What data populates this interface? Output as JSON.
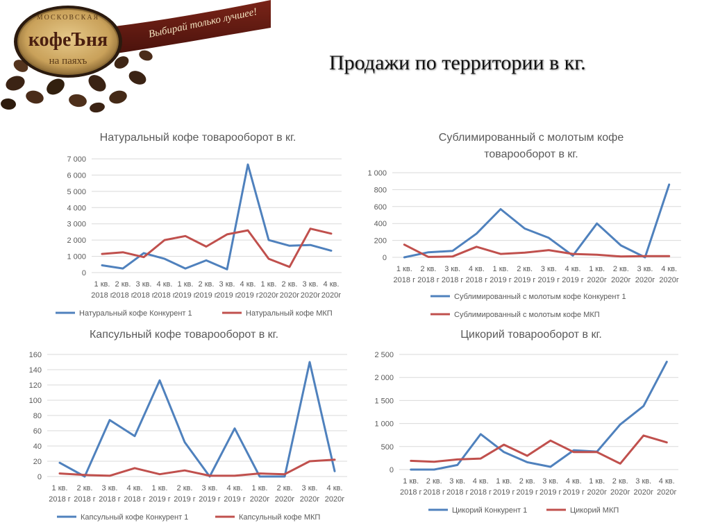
{
  "page": {
    "title": "Продажи по территории в кг."
  },
  "logo": {
    "arc_text": "МОСКОВСКАЯ",
    "brand": "кофеЪня",
    "sub": "на паяхъ",
    "ribbon": "Выбирай только лучшее!"
  },
  "colors": {
    "competitor": "#4f81bd",
    "mkp": "#c0504d",
    "grid": "#d9d9d9",
    "text": "#595959"
  },
  "chart_data": [
    {
      "id": "natural",
      "type": "line",
      "title": [
        "Натуральный кофе товарооборот в кг."
      ],
      "categories": [
        [
          "1 кв.",
          "2018 г"
        ],
        [
          "2 кв.",
          "2018 г"
        ],
        [
          "3 кв.",
          "2018 г"
        ],
        [
          "4 кв.",
          "2018 г"
        ],
        [
          "1 кв.",
          "2019 г"
        ],
        [
          "2 кв.",
          "2019 г"
        ],
        [
          "3 кв.",
          "2019 г"
        ],
        [
          "4 кв.",
          "2019 г"
        ],
        [
          "1 кв.",
          "2020г"
        ],
        [
          "2 кв.",
          "2020г"
        ],
        [
          "3 кв.",
          "2020г"
        ],
        [
          "4 кв.",
          "2020г"
        ]
      ],
      "yticks": [
        "0",
        "1 000",
        "2 000",
        "3 000",
        "4 000",
        "5 000",
        "6 000",
        "7 000"
      ],
      "ylim": [
        0,
        7000
      ],
      "ystep": 1000,
      "legend": "bottom",
      "series": [
        {
          "name": "Натуральный кофе Конкурент 1",
          "color": "#4f81bd",
          "values": [
            450,
            250,
            1200,
            850,
            250,
            750,
            200,
            6650,
            2000,
            1650,
            1700,
            1350
          ]
        },
        {
          "name": "Натуральный кофе МКП",
          "color": "#c0504d",
          "values": [
            1150,
            1250,
            950,
            2000,
            2250,
            1600,
            2350,
            2600,
            850,
            350,
            2700,
            2400
          ]
        }
      ]
    },
    {
      "id": "sublimated",
      "type": "line",
      "title": [
        "Сублимированный с молотым кофе",
        "товарооборот в кг."
      ],
      "categories": [
        [
          "1 кв.",
          "2018 г"
        ],
        [
          "2 кв.",
          "2018 г"
        ],
        [
          "3 кв.",
          "2018 г"
        ],
        [
          "4 кв.",
          "2018 г"
        ],
        [
          "1 кв.",
          "2019 г"
        ],
        [
          "2 кв.",
          "2019 г"
        ],
        [
          "3 кв.",
          "2019 г"
        ],
        [
          "4 кв.",
          "2019 г"
        ],
        [
          "1 кв.",
          "2020г"
        ],
        [
          "2 кв.",
          "2020г"
        ],
        [
          "3 кв.",
          "2020г"
        ],
        [
          "4 кв.",
          "2020г"
        ]
      ],
      "yticks": [
        "0",
        "200",
        "400",
        "600",
        "800",
        "1 000"
      ],
      "ylim": [
        0,
        1000
      ],
      "ystep": 200,
      "legend": "bottom",
      "series": [
        {
          "name": "Сублимированный с молотым кофе Конкурент 1",
          "color": "#4f81bd",
          "values": [
            0,
            60,
            75,
            280,
            570,
            340,
            230,
            20,
            400,
            140,
            0,
            860
          ]
        },
        {
          "name": "Сублимированный с молотым кофе МКП",
          "color": "#c0504d",
          "values": [
            150,
            5,
            10,
            125,
            40,
            55,
            85,
            40,
            30,
            10,
            15,
            15
          ]
        }
      ]
    },
    {
      "id": "capsule",
      "type": "line",
      "title": [
        "Капсульный кофе товарооборот в кг."
      ],
      "categories": [
        [
          "1 кв.",
          "2018 г"
        ],
        [
          "2 кв.",
          "2018 г"
        ],
        [
          "3 кв.",
          "2018 г"
        ],
        [
          "4 кв.",
          "2018 г"
        ],
        [
          "1 кв.",
          "2019 г"
        ],
        [
          "2 кв.",
          "2019 г"
        ],
        [
          "3 кв.",
          "2019 г"
        ],
        [
          "4 кв.",
          "2019 г"
        ],
        [
          "1 кв.",
          "2020г"
        ],
        [
          "2 кв.",
          "2020г"
        ],
        [
          "3 кв.",
          "2020г"
        ],
        [
          "4 кв.",
          "2020г"
        ]
      ],
      "yticks": [
        "0",
        "20",
        "40",
        "60",
        "80",
        "100",
        "120",
        "140",
        "160"
      ],
      "ylim": [
        0,
        160
      ],
      "ystep": 20,
      "legend": "bottom",
      "series": [
        {
          "name": "Капсульный кофе Конкурент 1",
          "color": "#4f81bd",
          "values": [
            18,
            0,
            74,
            53,
            126,
            45,
            0,
            63,
            0,
            0,
            150,
            7
          ]
        },
        {
          "name": "Капсульный кофе МКП",
          "color": "#c0504d",
          "values": [
            4,
            2,
            1,
            11,
            3,
            8,
            1,
            1,
            4,
            3,
            20,
            22
          ]
        }
      ]
    },
    {
      "id": "chicory",
      "type": "line",
      "title": [
        "Цикорий товарооборот в кг."
      ],
      "categories": [
        [
          "1 кв.",
          "2018 г"
        ],
        [
          "2 кв.",
          "2018 г"
        ],
        [
          "3 кв.",
          "2018 г"
        ],
        [
          "4 кв.",
          "2018 г"
        ],
        [
          "1 кв.",
          "2019 г"
        ],
        [
          "2 кв.",
          "2019 г"
        ],
        [
          "3 кв.",
          "2019 г"
        ],
        [
          "4 кв.",
          "2019 г"
        ],
        [
          "1 кв.",
          "2020г"
        ],
        [
          "2 кв.",
          "2020г"
        ],
        [
          "3 кв.",
          "2020г"
        ],
        [
          "4 кв.",
          "2020г"
        ]
      ],
      "yticks": [
        "0",
        "500",
        "1 000",
        "1 500",
        "2 000",
        "2 500"
      ],
      "ylim": [
        0,
        2500
      ],
      "ystep": 500,
      "legend": "bottom",
      "series": [
        {
          "name": "Цикорий Конкурент 1",
          "color": "#4f81bd",
          "values": [
            0,
            0,
            100,
            770,
            380,
            160,
            60,
            420,
            390,
            980,
            1380,
            2340
          ]
        },
        {
          "name": "Цикорий МКП",
          "color": "#c0504d",
          "values": [
            190,
            170,
            220,
            240,
            540,
            300,
            630,
            380,
            380,
            130,
            740,
            590
          ]
        }
      ]
    }
  ]
}
